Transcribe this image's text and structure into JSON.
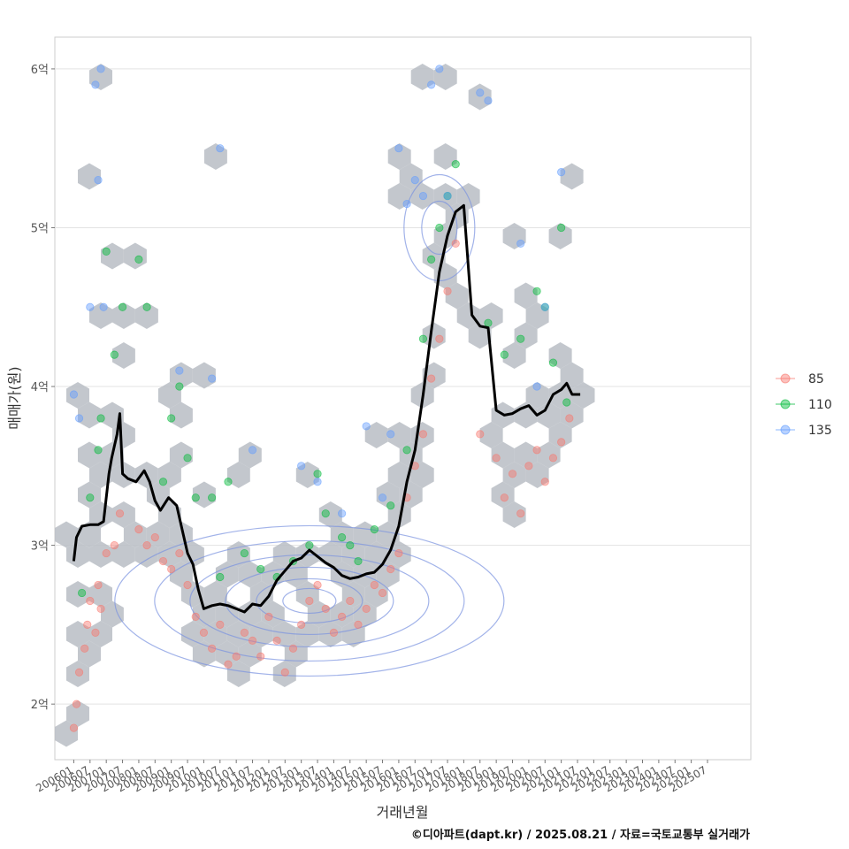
{
  "chart_data": {
    "type": "scatter",
    "xlabel": "거래년월",
    "ylabel": "매매가(원)",
    "caption": "©디아파트(dapt.kr) / 2025.08.21 / 자료=국토교통부 실거래가",
    "x_range": [
      "2005-06",
      "2026-11"
    ],
    "ylim": [
      1.65,
      6.2
    ],
    "y_ticks": [
      {
        "value": 2,
        "label": "2억"
      },
      {
        "value": 3,
        "label": "3억"
      },
      {
        "value": 4,
        "label": "4억"
      },
      {
        "value": 5,
        "label": "5억"
      },
      {
        "value": 6,
        "label": "6억"
      }
    ],
    "x_ticks": [
      "200601",
      "200607",
      "200701",
      "200707",
      "200801",
      "200807",
      "200901",
      "200907",
      "201001",
      "201007",
      "201101",
      "201107",
      "201201",
      "201207",
      "201301",
      "201307",
      "201401",
      "201407",
      "201501",
      "201507",
      "201601",
      "201607",
      "201701",
      "201707",
      "201801",
      "201807",
      "201901",
      "201907",
      "202001",
      "202007",
      "202101",
      "202107",
      "202201",
      "202207",
      "202301",
      "202307",
      "202401",
      "202407",
      "202501",
      "202507"
    ],
    "legend": {
      "position": "right",
      "entries": [
        {
          "label": "85",
          "color": "#F8766D"
        },
        {
          "label": "110",
          "color": "#00BA38"
        },
        {
          "label": "135",
          "color": "#619CFF"
        }
      ]
    },
    "colors": {
      "hex": "#b8bdc4",
      "trend": "#000000",
      "contour": "#7b93e0"
    },
    "trend_line": [
      [
        "2006-01",
        2.9
      ],
      [
        "2006-02",
        3.05
      ],
      [
        "2006-04",
        3.12
      ],
      [
        "2006-07",
        3.13
      ],
      [
        "2006-10",
        3.13
      ],
      [
        "2006-12",
        3.15
      ],
      [
        "2007-02",
        3.45
      ],
      [
        "2007-03",
        3.55
      ],
      [
        "2007-05",
        3.7
      ],
      [
        "2007-06",
        3.83
      ],
      [
        "2007-07",
        3.45
      ],
      [
        "2007-09",
        3.42
      ],
      [
        "2007-12",
        3.4
      ],
      [
        "2008-03",
        3.47
      ],
      [
        "2008-05",
        3.4
      ],
      [
        "2008-07",
        3.28
      ],
      [
        "2008-09",
        3.22
      ],
      [
        "2008-12",
        3.3
      ],
      [
        "2009-03",
        3.25
      ],
      [
        "2009-05",
        3.1
      ],
      [
        "2009-07",
        2.95
      ],
      [
        "2009-09",
        2.88
      ],
      [
        "2009-11",
        2.72
      ],
      [
        "2010-01",
        2.6
      ],
      [
        "2010-04",
        2.62
      ],
      [
        "2010-07",
        2.63
      ],
      [
        "2010-10",
        2.62
      ],
      [
        "2011-01",
        2.6
      ],
      [
        "2011-04",
        2.58
      ],
      [
        "2011-07",
        2.63
      ],
      [
        "2011-10",
        2.62
      ],
      [
        "2012-01",
        2.68
      ],
      [
        "2012-04",
        2.78
      ],
      [
        "2012-07",
        2.84
      ],
      [
        "2012-10",
        2.9
      ],
      [
        "2013-01",
        2.92
      ],
      [
        "2013-04",
        2.97
      ],
      [
        "2013-07",
        2.93
      ],
      [
        "2013-10",
        2.89
      ],
      [
        "2014-01",
        2.86
      ],
      [
        "2014-04",
        2.81
      ],
      [
        "2014-07",
        2.79
      ],
      [
        "2014-10",
        2.8
      ],
      [
        "2015-01",
        2.82
      ],
      [
        "2015-04",
        2.83
      ],
      [
        "2015-07",
        2.88
      ],
      [
        "2015-10",
        2.97
      ],
      [
        "2016-01",
        3.12
      ],
      [
        "2016-04",
        3.4
      ],
      [
        "2016-07",
        3.6
      ],
      [
        "2016-10",
        3.95
      ],
      [
        "2017-01",
        4.35
      ],
      [
        "2017-04",
        4.72
      ],
      [
        "2017-07",
        4.95
      ],
      [
        "2017-10",
        5.1
      ],
      [
        "2018-01",
        5.14
      ],
      [
        "2018-04",
        4.45
      ],
      [
        "2018-07",
        4.38
      ],
      [
        "2018-10",
        4.37
      ],
      [
        "2019-01",
        3.85
      ],
      [
        "2019-04",
        3.82
      ],
      [
        "2019-07",
        3.83
      ],
      [
        "2019-10",
        3.86
      ],
      [
        "2020-01",
        3.88
      ],
      [
        "2020-04",
        3.82
      ],
      [
        "2020-07",
        3.85
      ],
      [
        "2020-10",
        3.95
      ],
      [
        "2021-01",
        3.98
      ],
      [
        "2021-03",
        4.02
      ],
      [
        "2021-05",
        3.95
      ],
      [
        "2021-08",
        3.95
      ]
    ],
    "series": [
      {
        "name": "85",
        "points": [
          [
            "2006-01",
            1.85
          ],
          [
            "2006-02",
            2.0
          ],
          [
            "2006-03",
            2.2
          ],
          [
            "2006-05",
            2.35
          ],
          [
            "2006-06",
            2.5
          ],
          [
            "2006-07",
            2.65
          ],
          [
            "2006-09",
            2.45
          ],
          [
            "2006-10",
            2.75
          ],
          [
            "2006-11",
            2.6
          ],
          [
            "2007-01",
            2.95
          ],
          [
            "2007-04",
            3.0
          ],
          [
            "2007-06",
            3.2
          ],
          [
            "2008-01",
            3.1
          ],
          [
            "2008-04",
            3.0
          ],
          [
            "2008-07",
            3.05
          ],
          [
            "2008-10",
            2.9
          ],
          [
            "2009-01",
            2.85
          ],
          [
            "2009-04",
            2.95
          ],
          [
            "2009-07",
            2.75
          ],
          [
            "2009-10",
            2.55
          ],
          [
            "2010-01",
            2.45
          ],
          [
            "2010-04",
            2.35
          ],
          [
            "2010-07",
            2.5
          ],
          [
            "2010-10",
            2.25
          ],
          [
            "2011-01",
            2.3
          ],
          [
            "2011-04",
            2.45
          ],
          [
            "2011-07",
            2.4
          ],
          [
            "2011-10",
            2.3
          ],
          [
            "2012-01",
            2.55
          ],
          [
            "2012-04",
            2.4
          ],
          [
            "2012-07",
            2.2
          ],
          [
            "2012-10",
            2.35
          ],
          [
            "2013-01",
            2.5
          ],
          [
            "2013-04",
            2.65
          ],
          [
            "2013-07",
            2.75
          ],
          [
            "2013-10",
            2.6
          ],
          [
            "2014-01",
            2.45
          ],
          [
            "2014-04",
            2.55
          ],
          [
            "2014-07",
            2.65
          ],
          [
            "2014-10",
            2.5
          ],
          [
            "2015-01",
            2.6
          ],
          [
            "2015-04",
            2.75
          ],
          [
            "2015-07",
            2.7
          ],
          [
            "2015-10",
            2.85
          ],
          [
            "2016-01",
            2.95
          ],
          [
            "2016-04",
            3.3
          ],
          [
            "2016-07",
            3.5
          ],
          [
            "2016-10",
            3.7
          ],
          [
            "2017-01",
            4.05
          ],
          [
            "2017-04",
            4.3
          ],
          [
            "2017-07",
            4.6
          ],
          [
            "2017-10",
            4.9
          ],
          [
            "2018-07",
            3.7
          ],
          [
            "2019-01",
            3.55
          ],
          [
            "2019-04",
            3.3
          ],
          [
            "2019-07",
            3.45
          ],
          [
            "2019-10",
            3.2
          ],
          [
            "2020-01",
            3.5
          ],
          [
            "2020-04",
            3.6
          ],
          [
            "2020-07",
            3.4
          ],
          [
            "2020-10",
            3.55
          ],
          [
            "2021-01",
            3.65
          ],
          [
            "2021-04",
            3.8
          ]
        ]
      },
      {
        "name": "110",
        "points": [
          [
            "2006-04",
            2.7
          ],
          [
            "2006-07",
            3.3
          ],
          [
            "2006-10",
            3.6
          ],
          [
            "2006-11",
            3.8
          ],
          [
            "2007-01",
            4.85
          ],
          [
            "2007-04",
            4.2
          ],
          [
            "2007-07",
            4.5
          ],
          [
            "2008-01",
            4.8
          ],
          [
            "2008-04",
            4.5
          ],
          [
            "2008-10",
            3.4
          ],
          [
            "2009-01",
            3.8
          ],
          [
            "2009-04",
            4.0
          ],
          [
            "2009-07",
            3.55
          ],
          [
            "2009-10",
            3.3
          ],
          [
            "2010-04",
            3.3
          ],
          [
            "2010-07",
            2.8
          ],
          [
            "2010-10",
            3.4
          ],
          [
            "2011-04",
            2.95
          ],
          [
            "2011-10",
            2.85
          ],
          [
            "2012-04",
            2.8
          ],
          [
            "2012-10",
            2.9
          ],
          [
            "2013-04",
            3.0
          ],
          [
            "2013-07",
            3.45
          ],
          [
            "2013-10",
            3.2
          ],
          [
            "2014-04",
            3.05
          ],
          [
            "2014-07",
            3.0
          ],
          [
            "2014-10",
            2.9
          ],
          [
            "2015-04",
            3.1
          ],
          [
            "2015-10",
            3.25
          ],
          [
            "2016-04",
            3.6
          ],
          [
            "2016-10",
            4.3
          ],
          [
            "2017-01",
            4.8
          ],
          [
            "2017-04",
            5.0
          ],
          [
            "2017-07",
            5.2
          ],
          [
            "2017-10",
            5.4
          ],
          [
            "2018-10",
            4.4
          ],
          [
            "2019-04",
            4.2
          ],
          [
            "2019-10",
            4.3
          ],
          [
            "2020-04",
            4.6
          ],
          [
            "2020-07",
            4.5
          ],
          [
            "2020-10",
            4.15
          ],
          [
            "2021-01",
            5.0
          ],
          [
            "2021-03",
            3.9
          ]
        ]
      },
      {
        "name": "135",
        "points": [
          [
            "2006-01",
            3.95
          ],
          [
            "2006-03",
            3.8
          ],
          [
            "2006-07",
            4.5
          ],
          [
            "2006-09",
            5.9
          ],
          [
            "2006-10",
            5.3
          ],
          [
            "2006-11",
            6.0
          ],
          [
            "2006-12",
            4.5
          ],
          [
            "2009-04",
            4.1
          ],
          [
            "2010-04",
            4.05
          ],
          [
            "2010-07",
            5.5
          ],
          [
            "2011-07",
            3.6
          ],
          [
            "2013-01",
            3.5
          ],
          [
            "2013-07",
            3.4
          ],
          [
            "2014-04",
            3.2
          ],
          [
            "2015-01",
            3.75
          ],
          [
            "2015-07",
            3.3
          ],
          [
            "2015-10",
            3.7
          ],
          [
            "2016-01",
            5.5
          ],
          [
            "2016-04",
            5.15
          ],
          [
            "2016-07",
            5.3
          ],
          [
            "2016-10",
            5.2
          ],
          [
            "2017-01",
            5.9
          ],
          [
            "2017-04",
            6.0
          ],
          [
            "2017-07",
            5.2
          ],
          [
            "2018-07",
            5.85
          ],
          [
            "2018-10",
            5.8
          ],
          [
            "2019-10",
            4.9
          ],
          [
            "2020-07",
            4.5
          ],
          [
            "2021-01",
            5.35
          ],
          [
            "2020-04",
            4.0
          ]
        ]
      }
    ]
  }
}
